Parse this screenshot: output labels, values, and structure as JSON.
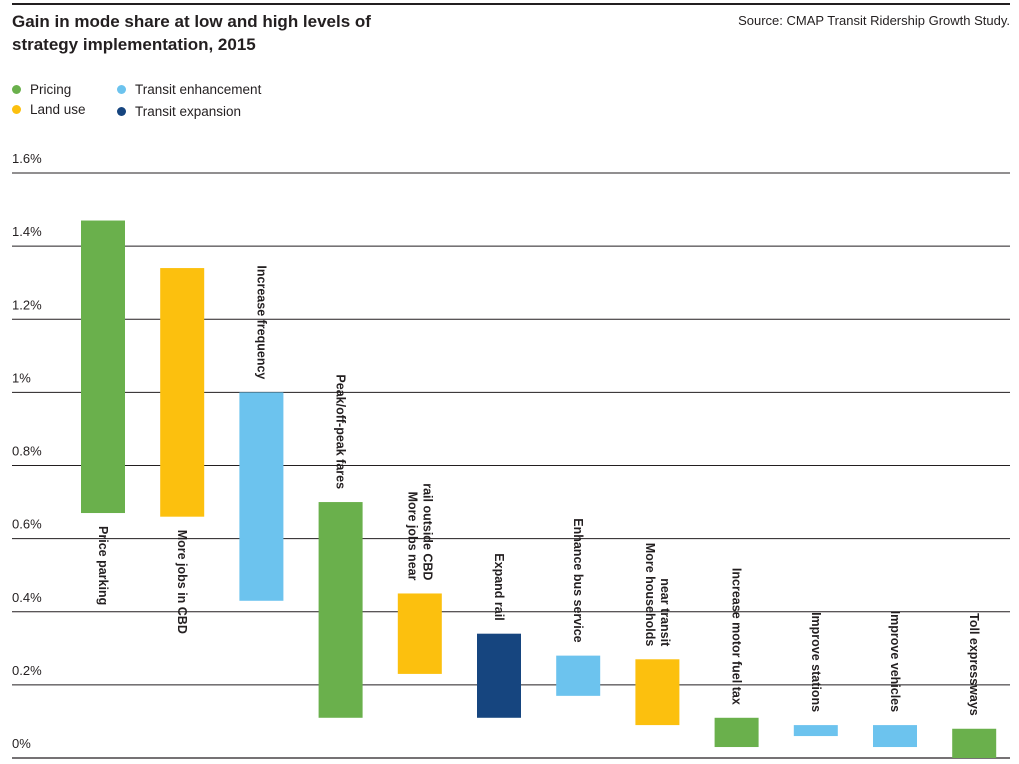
{
  "header": {
    "title": "Gain in mode share at low and high levels of strategy implementation, 2015",
    "source": "Source: CMAP Transit Ridership Growth Study."
  },
  "colors": {
    "Pricing": "#6ab04c",
    "Land use": "#fcc00e",
    "Transit enhancement": "#6cc3ee",
    "Transit expansion": "#16457f",
    "gridline": "#231f20"
  },
  "legend": {
    "items": [
      {
        "label": "Pricing",
        "color": "#6ab04c"
      },
      {
        "label": "Land use",
        "color": "#fcc00e"
      },
      {
        "label": "Transit enhancement",
        "color": "#6cc3ee"
      },
      {
        "label": "Transit expansion",
        "color": "#16457f"
      }
    ]
  },
  "chart_data": {
    "type": "bar",
    "subtype": "floating-range",
    "title": "Gain in mode share at low and high levels of strategy implementation, 2015",
    "xlabel": "",
    "ylabel": "",
    "ylim": [
      0,
      1.6
    ],
    "yticks": [
      0,
      0.2,
      0.4,
      0.6,
      0.8,
      1.0,
      1.2,
      1.4,
      1.6
    ],
    "ytick_labels": [
      "0%",
      "0.2%",
      "0.4%",
      "0.6%",
      "0.8%",
      "1%",
      "1.2%",
      "1.4%",
      "1.6%"
    ],
    "grid": true,
    "legend_position": "top-left",
    "categories": [
      "Price parking",
      "More jobs in CBD",
      "Increase frequency",
      "Peak/off-peak fares",
      "More jobs near rail outside CBD",
      "Expand rail",
      "Enhance bus service",
      "More households near transit",
      "Increase motor fuel tax",
      "Improve stations",
      "Improve vehicles",
      "Toll expressways"
    ],
    "series": [
      {
        "name": "Low",
        "values": [
          0.67,
          0.66,
          0.43,
          0.11,
          0.23,
          0.11,
          0.17,
          0.09,
          0.03,
          0.06,
          0.03,
          0.0
        ]
      },
      {
        "name": "High",
        "values": [
          1.47,
          1.34,
          1.0,
          0.7,
          0.45,
          0.34,
          0.28,
          0.27,
          0.11,
          0.09,
          0.09,
          0.08
        ]
      }
    ],
    "strategy_groups": [
      "Pricing",
      "Land use",
      "Transit enhancement",
      "Pricing",
      "Land use",
      "Transit expansion",
      "Transit enhancement",
      "Land use",
      "Pricing",
      "Transit enhancement",
      "Transit enhancement",
      "Pricing"
    ],
    "label_lines": [
      [
        "Price parking"
      ],
      [
        "More jobs in CBD"
      ],
      [
        "Increase frequency"
      ],
      [
        "Peak/off-peak fares"
      ],
      [
        "More jobs near",
        "rail outside CBD"
      ],
      [
        "Expand rail"
      ],
      [
        "Enhance bus service"
      ],
      [
        "More households",
        "near transit"
      ],
      [
        "Increase motor fuel tax"
      ],
      [
        "Improve stations"
      ],
      [
        "Improve vehicles"
      ],
      [
        "Toll expressways"
      ]
    ],
    "label_placement": [
      "below",
      "below",
      "above",
      "above",
      "above",
      "above",
      "above",
      "above",
      "above",
      "above",
      "above",
      "above"
    ]
  }
}
